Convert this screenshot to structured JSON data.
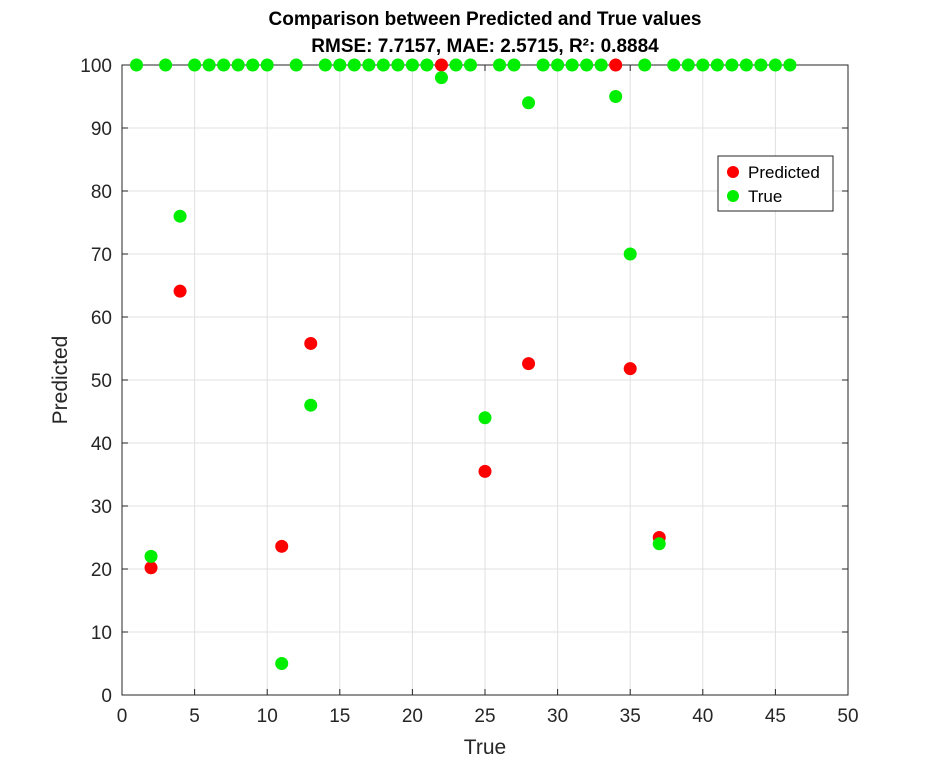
{
  "chart_data": {
    "type": "scatter",
    "title": "Comparison between Predicted and True values",
    "subtitle": "RMSE: 7.7157, MAE: 2.5715, R²: 0.8884",
    "xlabel": "True",
    "ylabel": "Predicted",
    "xlim": [
      0,
      50
    ],
    "ylim": [
      0,
      100
    ],
    "xticks": [
      0,
      5,
      10,
      15,
      20,
      25,
      30,
      35,
      40,
      45,
      50
    ],
    "yticks": [
      0,
      10,
      20,
      30,
      40,
      50,
      60,
      70,
      80,
      90,
      100
    ],
    "grid": true,
    "legend_position": "top-right",
    "series": [
      {
        "name": "Predicted",
        "color": "#ff0000",
        "points": [
          [
            2,
            20.2
          ],
          [
            4,
            64.1
          ],
          [
            11,
            23.6
          ],
          [
            13,
            55.8
          ],
          [
            22,
            100
          ],
          [
            25,
            35.5
          ],
          [
            28,
            52.6
          ],
          [
            34,
            100
          ],
          [
            35,
            51.8
          ],
          [
            37,
            25
          ]
        ]
      },
      {
        "name": "True",
        "color": "#00ee00",
        "points": [
          [
            1,
            100
          ],
          [
            2,
            22
          ],
          [
            3,
            100
          ],
          [
            4,
            76
          ],
          [
            5,
            100
          ],
          [
            6,
            100
          ],
          [
            7,
            100
          ],
          [
            8,
            100
          ],
          [
            9,
            100
          ],
          [
            10,
            100
          ],
          [
            11,
            5
          ],
          [
            12,
            100
          ],
          [
            13,
            46
          ],
          [
            14,
            100
          ],
          [
            15,
            100
          ],
          [
            16,
            100
          ],
          [
            17,
            100
          ],
          [
            18,
            100
          ],
          [
            19,
            100
          ],
          [
            20,
            100
          ],
          [
            21,
            100
          ],
          [
            22,
            98
          ],
          [
            23,
            100
          ],
          [
            24,
            100
          ],
          [
            25,
            44
          ],
          [
            26,
            100
          ],
          [
            27,
            100
          ],
          [
            28,
            94
          ],
          [
            29,
            100
          ],
          [
            30,
            100
          ],
          [
            31,
            100
          ],
          [
            32,
            100
          ],
          [
            33,
            100
          ],
          [
            34,
            95
          ],
          [
            35,
            70
          ],
          [
            36,
            100
          ],
          [
            37,
            24
          ],
          [
            38,
            100
          ],
          [
            39,
            100
          ],
          [
            40,
            100
          ],
          [
            41,
            100
          ],
          [
            42,
            100
          ],
          [
            43,
            100
          ],
          [
            44,
            100
          ],
          [
            45,
            100
          ],
          [
            46,
            100
          ]
        ]
      }
    ]
  }
}
